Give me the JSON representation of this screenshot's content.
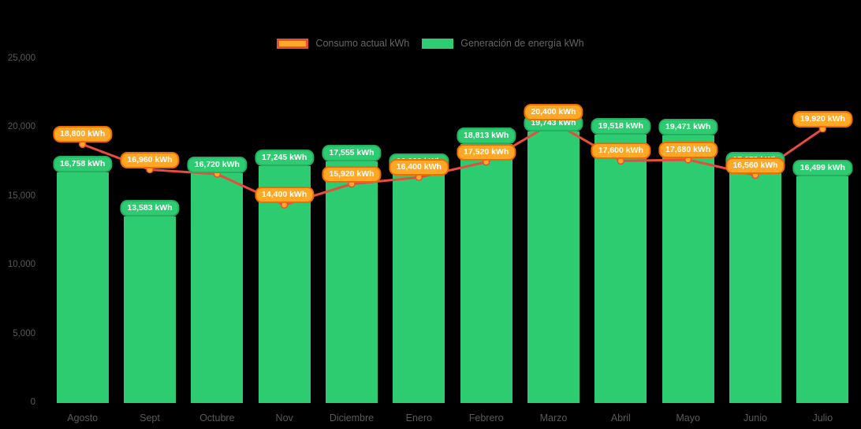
{
  "background_color": "#000000",
  "legend": {
    "position": "top"
  },
  "chart_data": {
    "type": "bar",
    "title": "",
    "xlabel": "",
    "ylabel": "",
    "categories": [
      "Agosto",
      "Sept",
      "Octubre",
      "Nov",
      "Diciembre",
      "Enero",
      "Febrero",
      "Marzo",
      "Abril",
      "Mayo",
      "Junio",
      "Julio"
    ],
    "series": [
      {
        "name": "Consumo actual kWh",
        "type": "line",
        "line_color": "#e74c3c",
        "point_color": "#ffa726",
        "values": [
          18800,
          16960,
          16640,
          14400,
          15920,
          16400,
          17520,
          20400,
          17600,
          17680,
          16560,
          19920
        ],
        "labels": [
          "18,800 kWh",
          "16,960 kWh",
          null,
          "14,400 kWh",
          "15,920 kWh",
          "16,400 kWh",
          "17,520 kWh",
          "20,400 kWh",
          "17,600 kWh",
          "17,680 kWh",
          "16,560 kWh",
          "19,920 kWh"
        ]
      },
      {
        "name": "Generación de energía kWh",
        "type": "bar",
        "color": "#2ecc71",
        "values": [
          16758,
          13583,
          16720,
          17245,
          17555,
          16929,
          18813,
          19743,
          19518,
          19471,
          17073,
          16499
        ],
        "labels": [
          "16,758 kWh",
          "13,583 kWh",
          "16,720 kWh",
          "17,245 kWh",
          "17,555 kWh",
          "16,929 kWh",
          "18,813 kWh",
          "19,743 kWh",
          "19,518 kWh",
          "19,471 kWh",
          "17,073 kWh",
          "16,499 kWh"
        ]
      }
    ],
    "ylim": [
      0,
      25000
    ],
    "yticks": [
      {
        "value": 0,
        "label": "0"
      },
      {
        "value": 5000,
        "label": "5,000"
      },
      {
        "value": 10000,
        "label": "10,000"
      },
      {
        "value": 15000,
        "label": "15,000"
      },
      {
        "value": 20000,
        "label": "20,000"
      },
      {
        "value": 25000,
        "label": "25,000"
      }
    ],
    "grid": false,
    "legend_position": "top"
  }
}
